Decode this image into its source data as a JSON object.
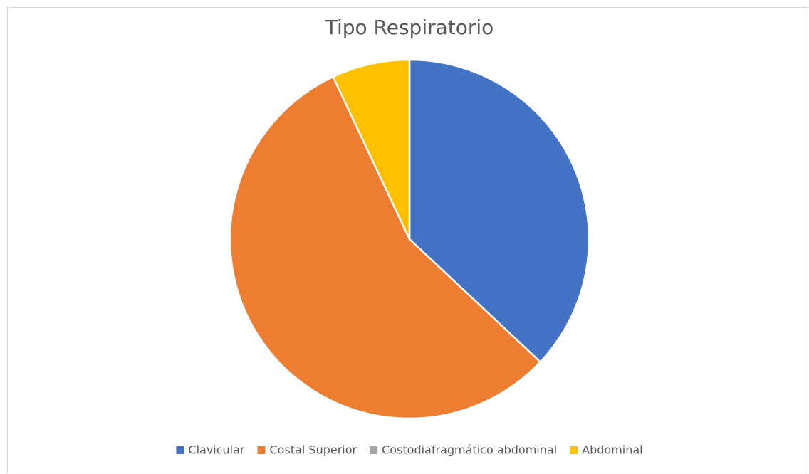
{
  "chart_data": {
    "type": "pie",
    "title": "Tipo Respiratorio",
    "categories": [
      "Clavicular",
      "Costal Superior",
      "Costodiafragmático abdominal",
      "Abdominal"
    ],
    "values": [
      37,
      56,
      0,
      7
    ],
    "colors": [
      "#4472c4",
      "#ed7d31",
      "#a5a5a5",
      "#ffc000"
    ],
    "legend": "bottom"
  }
}
